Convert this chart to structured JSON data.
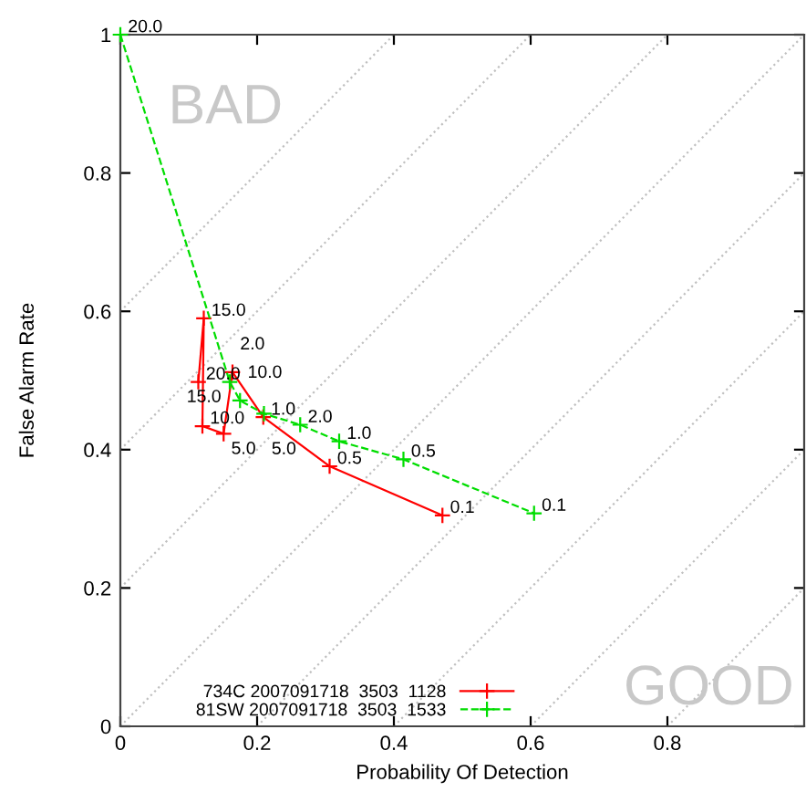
{
  "chart_data": {
    "type": "line",
    "xlabel": "Probability Of Detection",
    "ylabel": "False Alarm Rate",
    "xlim": [
      0,
      1
    ],
    "ylim": [
      0,
      1
    ],
    "xticks": [
      0,
      0.2,
      0.4,
      0.6,
      0.8
    ],
    "yticks": [
      0,
      0.2,
      0.4,
      0.6,
      0.8,
      1
    ],
    "grid": false,
    "legend": "bottom",
    "series": [
      {
        "name": "734C 2007091718  3503  1128",
        "color": "#ff0000",
        "marker": "cross",
        "line_style": "solid",
        "x": [
          0.114,
          0.122,
          0.12,
          0.151,
          0.164,
          0.209,
          0.306,
          0.471
        ],
        "values": [
          0.498,
          0.59,
          0.434,
          0.423,
          0.512,
          0.447,
          0.376,
          0.305
        ]
      },
      {
        "name": "81SW 2007091718  3503  1533",
        "color": "#00dd00",
        "marker": "cross",
        "line_style": "dashed",
        "x": [
          0.0,
          0.16,
          0.175,
          0.21,
          0.263,
          0.32,
          0.414,
          0.605
        ],
        "values": [
          1.0,
          0.498,
          0.471,
          0.452,
          0.436,
          0.412,
          0.386,
          0.308
        ]
      },
      {
        "color": "#c0c0c0",
        "marker": "none",
        "line_style": "dotted",
        "x": [
          0,
          0.4
        ],
        "values": [
          0.6,
          1
        ]
      },
      {
        "color": "#c0c0c0",
        "marker": "none",
        "line_style": "dotted",
        "x": [
          0,
          0.6
        ],
        "values": [
          0.4,
          1
        ]
      },
      {
        "color": "#c0c0c0",
        "marker": "none",
        "line_style": "dotted",
        "x": [
          0,
          0.8
        ],
        "values": [
          0.2,
          1
        ]
      },
      {
        "color": "#c0c0c0",
        "marker": "none",
        "line_style": "dotted",
        "x": [
          0,
          1
        ],
        "values": [
          0,
          1
        ]
      },
      {
        "color": "#c0c0c0",
        "marker": "none",
        "line_style": "dotted",
        "x": [
          0.2,
          1
        ],
        "values": [
          0,
          0.8
        ]
      },
      {
        "color": "#c0c0c0",
        "marker": "none",
        "line_style": "dotted",
        "x": [
          0.4,
          1
        ],
        "values": [
          0,
          0.6
        ]
      },
      {
        "color": "#c0c0c0",
        "marker": "none",
        "line_style": "dotted",
        "x": [
          0.6,
          1
        ],
        "values": [
          0,
          0.4
        ]
      },
      {
        "color": "#c0c0c0",
        "marker": "none",
        "line_style": "dotted",
        "x": [
          0.8,
          1
        ],
        "values": [
          0,
          0.2
        ]
      }
    ],
    "annotations": [
      "BAD",
      "GOOD",
      {
        "text": "20.0",
        "x": 0.114,
        "y": 0.498
      },
      {
        "text": "15.0",
        "x": 0.122,
        "y": 0.59
      },
      {
        "text": "10.0",
        "x": 0.12,
        "y": 0.434
      },
      {
        "text": "5.0",
        "x": 0.151,
        "y": 0.423
      },
      {
        "text": "2.0",
        "x": 0.164,
        "y": 0.512
      },
      {
        "text": "1.0",
        "x": 0.209,
        "y": 0.447
      },
      {
        "text": "0.5",
        "x": 0.306,
        "y": 0.376
      },
      {
        "text": "0.1",
        "x": 0.471,
        "y": 0.305
      },
      {
        "text": "20.0",
        "x": 0.0,
        "y": 1.0
      },
      {
        "text": "15.0",
        "x": 0.16,
        "y": 0.498
      },
      {
        "text": "10.0",
        "x": 0.175,
        "y": 0.471
      },
      {
        "text": "5.0",
        "x": 0.21,
        "y": 0.452
      },
      {
        "text": "2.0",
        "x": 0.263,
        "y": 0.436
      },
      {
        "text": "1.0",
        "x": 0.32,
        "y": 0.412
      },
      {
        "text": "0.5",
        "x": 0.414,
        "y": 0.386
      },
      {
        "text": "0.1",
        "x": 0.605,
        "y": 0.308
      }
    ]
  }
}
